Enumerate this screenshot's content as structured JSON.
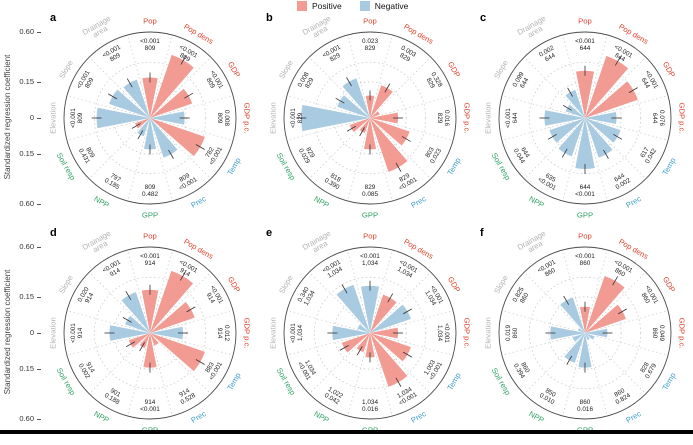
{
  "figure": {
    "axis_title": "Standardized regression coefficient"
  },
  "chart_data": {
    "type": "polar-bar-small-multiples",
    "radial_axis": {
      "label": "Standardized regression coefficient",
      "tick_labels": [
        "0.60",
        "0.15",
        "0",
        "0.15",
        "0.60"
      ],
      "tick_values": [
        0.6,
        0.15,
        0,
        -0.15,
        -0.6
      ],
      "max": 0.6,
      "gridlines": [
        0.15,
        0.3
      ],
      "scale_exponent": 0.625
    },
    "legend": [
      {
        "label": "Positive",
        "color": "#F19B93"
      },
      {
        "label": "Negative",
        "color": "#A9CBE1"
      }
    ],
    "bar_colors": {
      "positive": "#F19B93",
      "negative": "#A9CBE1"
    },
    "groups": {
      "socioeconomic": "#E0442F",
      "climate": "#3E9EC6",
      "ecosystem": "#2FA163",
      "terrain": "#B2B2B2"
    },
    "categories": [
      {
        "name": "Pop",
        "lines": [
          "Pop"
        ],
        "group": "socioeconomic"
      },
      {
        "name": "Pop dens",
        "lines": [
          "Pop dens"
        ],
        "group": "socioeconomic"
      },
      {
        "name": "GDP",
        "lines": [
          "GDP"
        ],
        "group": "socioeconomic"
      },
      {
        "name": "GDP p.c.",
        "lines": [
          "GDP p.c."
        ],
        "group": "socioeconomic"
      },
      {
        "name": "Temp",
        "lines": [
          "Temp"
        ],
        "group": "climate"
      },
      {
        "name": "Prec",
        "lines": [
          "Prec"
        ],
        "group": "climate"
      },
      {
        "name": "GPP",
        "lines": [
          "GPP"
        ],
        "group": "ecosystem"
      },
      {
        "name": "NPP",
        "lines": [
          "NPP"
        ],
        "group": "ecosystem"
      },
      {
        "name": "Soil resp",
        "lines": [
          "Soil resp"
        ],
        "group": "ecosystem"
      },
      {
        "name": "Elevation",
        "lines": [
          "Elevation"
        ],
        "group": "terrain"
      },
      {
        "name": "Slope",
        "lines": [
          "Slope"
        ],
        "group": "terrain"
      },
      {
        "name": "Drainage area",
        "lines": [
          "Drainage",
          "area"
        ],
        "group": "terrain"
      }
    ],
    "panels": [
      {
        "letter": "a",
        "bars": [
          {
            "category": "Pop",
            "sign": "positive",
            "value": 0.18,
            "p": "<0.001",
            "n": "809"
          },
          {
            "category": "Pop dens",
            "sign": "positive",
            "value": 0.4,
            "p": "<0.001",
            "n": "809"
          },
          {
            "category": "GDP",
            "sign": "positive",
            "value": 0.21,
            "p": "<0.001",
            "n": "809"
          },
          {
            "category": "GDP p.c.",
            "sign": "negative",
            "value": 0.14,
            "p": "0.008",
            "n": "809"
          },
          {
            "category": "Temp",
            "sign": "positive",
            "value": 0.32,
            "p": "<0.001",
            "n": "782"
          },
          {
            "category": "Prec",
            "sign": "negative",
            "value": 0.19,
            "p": "<0.001",
            "n": "809"
          },
          {
            "category": "GPP",
            "sign": "negative",
            "value": 0.12,
            "p": "0.482",
            "n": "809"
          },
          {
            "category": "NPP",
            "sign": "negative",
            "value": 0.055,
            "p": "0.185",
            "n": "797"
          },
          {
            "category": "Soil resp",
            "sign": "positive",
            "value": 0.04,
            "p": "0.431",
            "n": "809"
          },
          {
            "category": "Elevation",
            "sign": "negative",
            "value": 0.28,
            "p": "<0.001",
            "n": "809"
          },
          {
            "category": "Slope",
            "sign": "negative",
            "value": 0.2,
            "p": "<0.001",
            "n": "809"
          },
          {
            "category": "Drainage area",
            "sign": "negative",
            "value": 0.18,
            "p": "<0.001",
            "n": "809"
          }
        ]
      },
      {
        "letter": "b",
        "bars": [
          {
            "category": "Pop",
            "sign": "positive",
            "value": 0.07,
            "p": "0.023",
            "n": "829"
          },
          {
            "category": "Pop dens",
            "sign": "positive",
            "value": 0.14,
            "p": "0.003",
            "n": "829"
          },
          {
            "category": "GDP",
            "sign": "positive",
            "value": 0.02,
            "p": "0.328",
            "n": "829"
          },
          {
            "category": "GDP p.c.",
            "sign": "positive",
            "value": 0.1,
            "p": "0.016",
            "n": "829"
          },
          {
            "category": "Temp",
            "sign": "positive",
            "value": 0.19,
            "p": "0.023",
            "n": "803"
          },
          {
            "category": "Prec",
            "sign": "positive",
            "value": 0.31,
            "p": "<0.001",
            "n": "829"
          },
          {
            "category": "GPP",
            "sign": "positive",
            "value": 0.12,
            "p": "0.085",
            "n": "829"
          },
          {
            "category": "NPP",
            "sign": "positive",
            "value": 0.04,
            "p": "0.390",
            "n": "818"
          },
          {
            "category": "Soil resp",
            "sign": "positive",
            "value": 0.065,
            "p": "0.029",
            "n": "829"
          },
          {
            "category": "Elevation",
            "sign": "negative",
            "value": 0.42,
            "p": "<0.001",
            "n": "829"
          },
          {
            "category": "Slope",
            "sign": "negative",
            "value": 0.14,
            "p": "0.008",
            "n": "829"
          },
          {
            "category": "Drainage area",
            "sign": "negative",
            "value": 0.19,
            "p": "<0.001",
            "n": "829"
          }
        ]
      },
      {
        "letter": "c",
        "bars": [
          {
            "category": "Pop",
            "sign": "positive",
            "value": 0.23,
            "p": "<0.001",
            "n": "644"
          },
          {
            "category": "Pop dens",
            "sign": "positive",
            "value": 0.39,
            "p": "<0.001",
            "n": "644"
          },
          {
            "category": "GDP",
            "sign": "positive",
            "value": 0.3,
            "p": "<0.001",
            "n": "644"
          },
          {
            "category": "GDP p.c.",
            "sign": "negative",
            "value": 0.12,
            "p": "0.076",
            "n": "644"
          },
          {
            "category": "Temp",
            "sign": "negative",
            "value": 0.16,
            "p": "0.042",
            "n": "617"
          },
          {
            "category": "Prec",
            "sign": "negative",
            "value": 0.19,
            "p": "0.002",
            "n": "644"
          },
          {
            "category": "GPP",
            "sign": "negative",
            "value": 0.26,
            "p": "<0.001",
            "n": "644"
          },
          {
            "category": "NPP",
            "sign": "negative",
            "value": 0.18,
            "p": "<0.001",
            "n": "635"
          },
          {
            "category": "Soil resp",
            "sign": "negative",
            "value": 0.16,
            "p": "0.044",
            "n": "644"
          },
          {
            "category": "Elevation",
            "sign": "negative",
            "value": 0.18,
            "p": "<0.001",
            "n": "644"
          },
          {
            "category": "Slope",
            "sign": "negative",
            "value": 0.06,
            "p": "0.099",
            "n": "644"
          },
          {
            "category": "Drainage area",
            "sign": "negative",
            "value": 0.11,
            "p": "0.002",
            "n": "644"
          }
        ]
      },
      {
        "letter": "d",
        "bars": [
          {
            "category": "Pop",
            "sign": "positive",
            "value": 0.2,
            "p": "<0.001",
            "n": "914"
          },
          {
            "category": "Pop dens",
            "sign": "positive",
            "value": 0.39,
            "p": "<0.001",
            "n": "914"
          },
          {
            "category": "GDP",
            "sign": "positive",
            "value": 0.23,
            "p": "<0.001",
            "n": "914"
          },
          {
            "category": "GDP p.c.",
            "sign": "negative",
            "value": 0.13,
            "p": "0.012",
            "n": "914"
          },
          {
            "category": "Temp",
            "sign": "positive",
            "value": 0.32,
            "p": "<0.001",
            "n": "883"
          },
          {
            "category": "Prec",
            "sign": "positive",
            "value": 0.03,
            "p": "0.528",
            "n": "914"
          },
          {
            "category": "GPP",
            "sign": "positive",
            "value": 0.14,
            "p": "<0.001",
            "n": "914"
          },
          {
            "category": "NPP",
            "sign": "positive",
            "value": 0.04,
            "p": "0.188",
            "n": "901"
          },
          {
            "category": "Soil resp",
            "sign": "positive",
            "value": 0.07,
            "p": "0.002",
            "n": "914"
          },
          {
            "category": "Elevation",
            "sign": "negative",
            "value": 0.18,
            "p": "<0.001",
            "n": "914"
          },
          {
            "category": "Slope",
            "sign": "negative",
            "value": 0.09,
            "p": "0.020",
            "n": "914"
          },
          {
            "category": "Drainage area",
            "sign": "negative",
            "value": 0.2,
            "p": "<0.001",
            "n": "914"
          }
        ]
      },
      {
        "letter": "e",
        "bars": [
          {
            "category": "Pop",
            "sign": "negative",
            "value": 0.23,
            "p": "<0.001",
            "n": "1,034"
          },
          {
            "category": "Pop dens",
            "sign": "positive",
            "value": 0.18,
            "p": "<0.001",
            "n": "1,034"
          },
          {
            "category": "GDP",
            "sign": "negative",
            "value": 0.2,
            "p": "<0.001",
            "n": "1,034"
          },
          {
            "category": "GDP p.c.",
            "sign": "positive",
            "value": 0.1,
            "p": "<0.001",
            "n": "1,034"
          },
          {
            "category": "Temp",
            "sign": "positive",
            "value": 0.2,
            "p": "<0.001",
            "n": "1,003"
          },
          {
            "category": "Prec",
            "sign": "positive",
            "value": 0.31,
            "p": "<0.001",
            "n": "1,034"
          },
          {
            "category": "GPP",
            "sign": "positive",
            "value": 0.08,
            "p": "0.016",
            "n": "1,034"
          },
          {
            "category": "NPP",
            "sign": "positive",
            "value": 0.06,
            "p": "0.042",
            "n": "1,022"
          },
          {
            "category": "Soil resp",
            "sign": "positive",
            "value": 0.11,
            "p": "<0.001",
            "n": "1,034"
          },
          {
            "category": "Elevation",
            "sign": "negative",
            "value": 0.16,
            "p": "<0.001",
            "n": "1,034"
          },
          {
            "category": "Slope",
            "sign": "negative",
            "value": 0.03,
            "p": "0.340",
            "n": "1,034"
          },
          {
            "category": "Drainage area",
            "sign": "negative",
            "value": 0.26,
            "p": "<0.001",
            "n": "1,034"
          }
        ]
      },
      {
        "letter": "f",
        "bars": [
          {
            "category": "Pop",
            "sign": "positive",
            "value": 0.09,
            "p": "<0.001",
            "n": "860"
          },
          {
            "category": "Pop dens",
            "sign": "positive",
            "value": 0.34,
            "p": "<0.001",
            "n": "860"
          },
          {
            "category": "GDP",
            "sign": "positive",
            "value": 0.2,
            "p": "<0.001",
            "n": "860"
          },
          {
            "category": "GDP p.c.",
            "sign": "negative",
            "value": 0.07,
            "p": "0.049",
            "n": "860"
          },
          {
            "category": "Temp",
            "sign": "negative",
            "value": 0.02,
            "p": "0.679",
            "n": "828"
          },
          {
            "category": "Prec",
            "sign": "negative",
            "value": 0.012,
            "p": "0.824",
            "n": "860"
          },
          {
            "category": "GPP",
            "sign": "negative",
            "value": 0.14,
            "p": "0.016",
            "n": "860"
          },
          {
            "category": "NPP",
            "sign": "negative",
            "value": 0.12,
            "p": "0.010",
            "n": "850"
          },
          {
            "category": "Soil resp",
            "sign": "negative",
            "value": 0.03,
            "p": "0.394",
            "n": "860"
          },
          {
            "category": "Elevation",
            "sign": "negative",
            "value": 0.14,
            "p": "0.019",
            "n": "860"
          },
          {
            "category": "Slope",
            "sign": "negative",
            "value": 0.012,
            "p": "0.825",
            "n": "860"
          },
          {
            "category": "Drainage area",
            "sign": "negative",
            "value": 0.16,
            "p": "<0.001",
            "n": "860"
          }
        ]
      }
    ]
  }
}
